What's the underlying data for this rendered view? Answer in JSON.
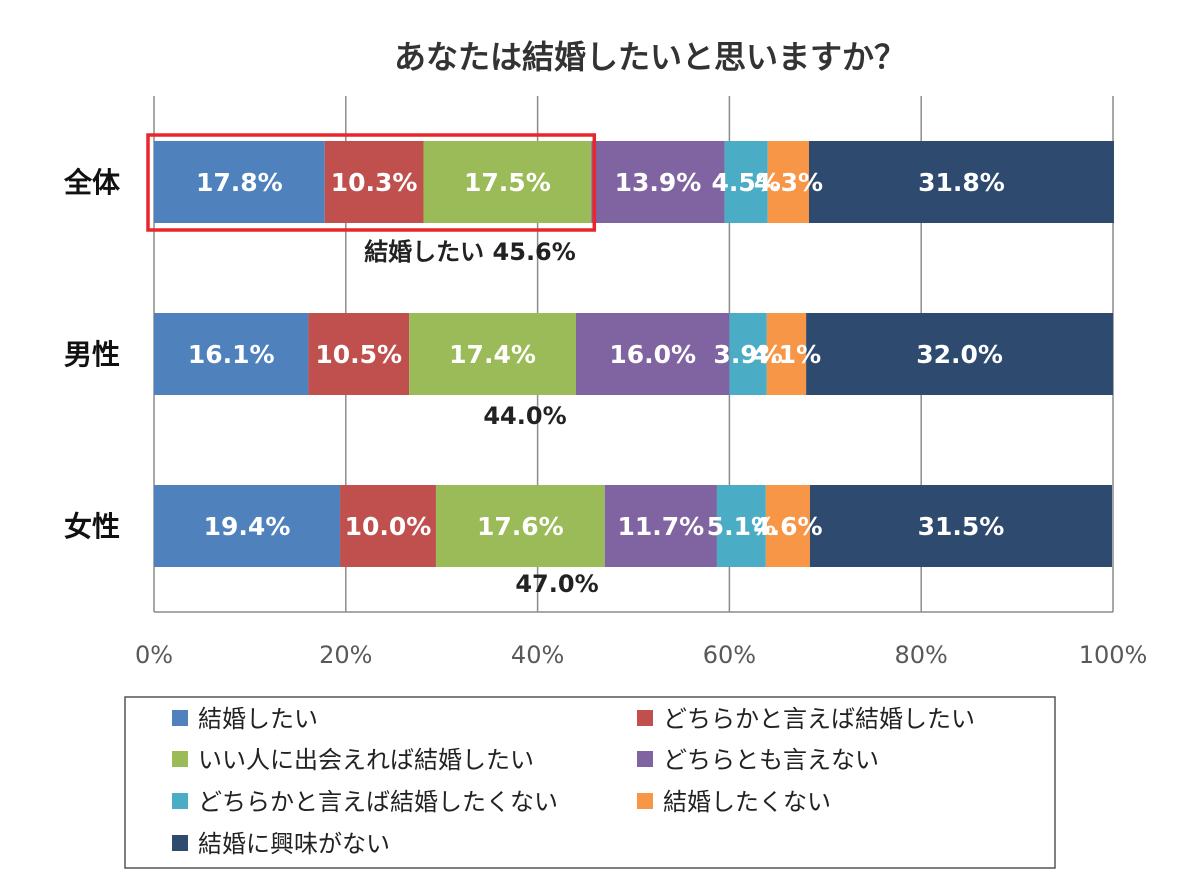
{
  "chart_data": {
    "type": "bar",
    "orientation": "horizontal",
    "stacked": true,
    "title": "あなたは結婚したいと思いますか？",
    "categories": [
      "全体",
      "男性",
      "女性"
    ],
    "xlim": [
      0,
      100
    ],
    "x_ticks": [
      "0%",
      "20%",
      "40%",
      "60%",
      "80%",
      "100%"
    ],
    "grid": true,
    "legend_position": "bottom",
    "series": [
      {
        "name": "結婚したい",
        "color": "#4f81bd",
        "values": [
          17.8,
          16.1,
          19.4
        ],
        "labels": [
          "17.8%",
          "16.1%",
          "19.4%"
        ]
      },
      {
        "name": "どちらかと言えば結婚したい",
        "color": "#c0504d",
        "values": [
          10.3,
          10.5,
          10.0
        ],
        "labels": [
          "10.3%",
          "10.5%",
          "10.0%"
        ]
      },
      {
        "name": "いい人に出会えれば結婚したい",
        "color": "#9bbb59",
        "values": [
          17.5,
          17.4,
          17.6
        ],
        "labels": [
          "17.5%",
          "17.4%",
          "17.6%"
        ]
      },
      {
        "name": "どちらとも言えない",
        "color": "#8064a2",
        "values": [
          13.9,
          16.0,
          11.7
        ],
        "labels": [
          "13.9%",
          "16.0%",
          "11.7%"
        ]
      },
      {
        "name": "どちらかと言えば結婚したくない",
        "color": "#4bacc6",
        "values": [
          4.5,
          3.9,
          5.1
        ],
        "labels": [
          "4.5%",
          "3.9%",
          "5.1%"
        ]
      },
      {
        "name": "結婚したくない",
        "color": "#f79646",
        "values": [
          4.3,
          4.1,
          4.6
        ],
        "labels": [
          "4.3%",
          "4.1%",
          "4.6%"
        ]
      },
      {
        "name": "結婚に興味がない",
        "color": "#2e4a6f",
        "values": [
          31.8,
          32.0,
          31.5
        ],
        "labels": [
          "31.8%",
          "32.0%",
          "31.5%"
        ]
      }
    ],
    "annotations": [
      {
        "category": "全体",
        "text": "結婚したい 45.6%",
        "value": 45.6,
        "highlight_box": true,
        "highlight_color": "#e8262b"
      },
      {
        "category": "男性",
        "text": "44.0%",
        "value": 44.0
      },
      {
        "category": "女性",
        "text": "47.0%",
        "value": 47.0
      }
    ]
  }
}
